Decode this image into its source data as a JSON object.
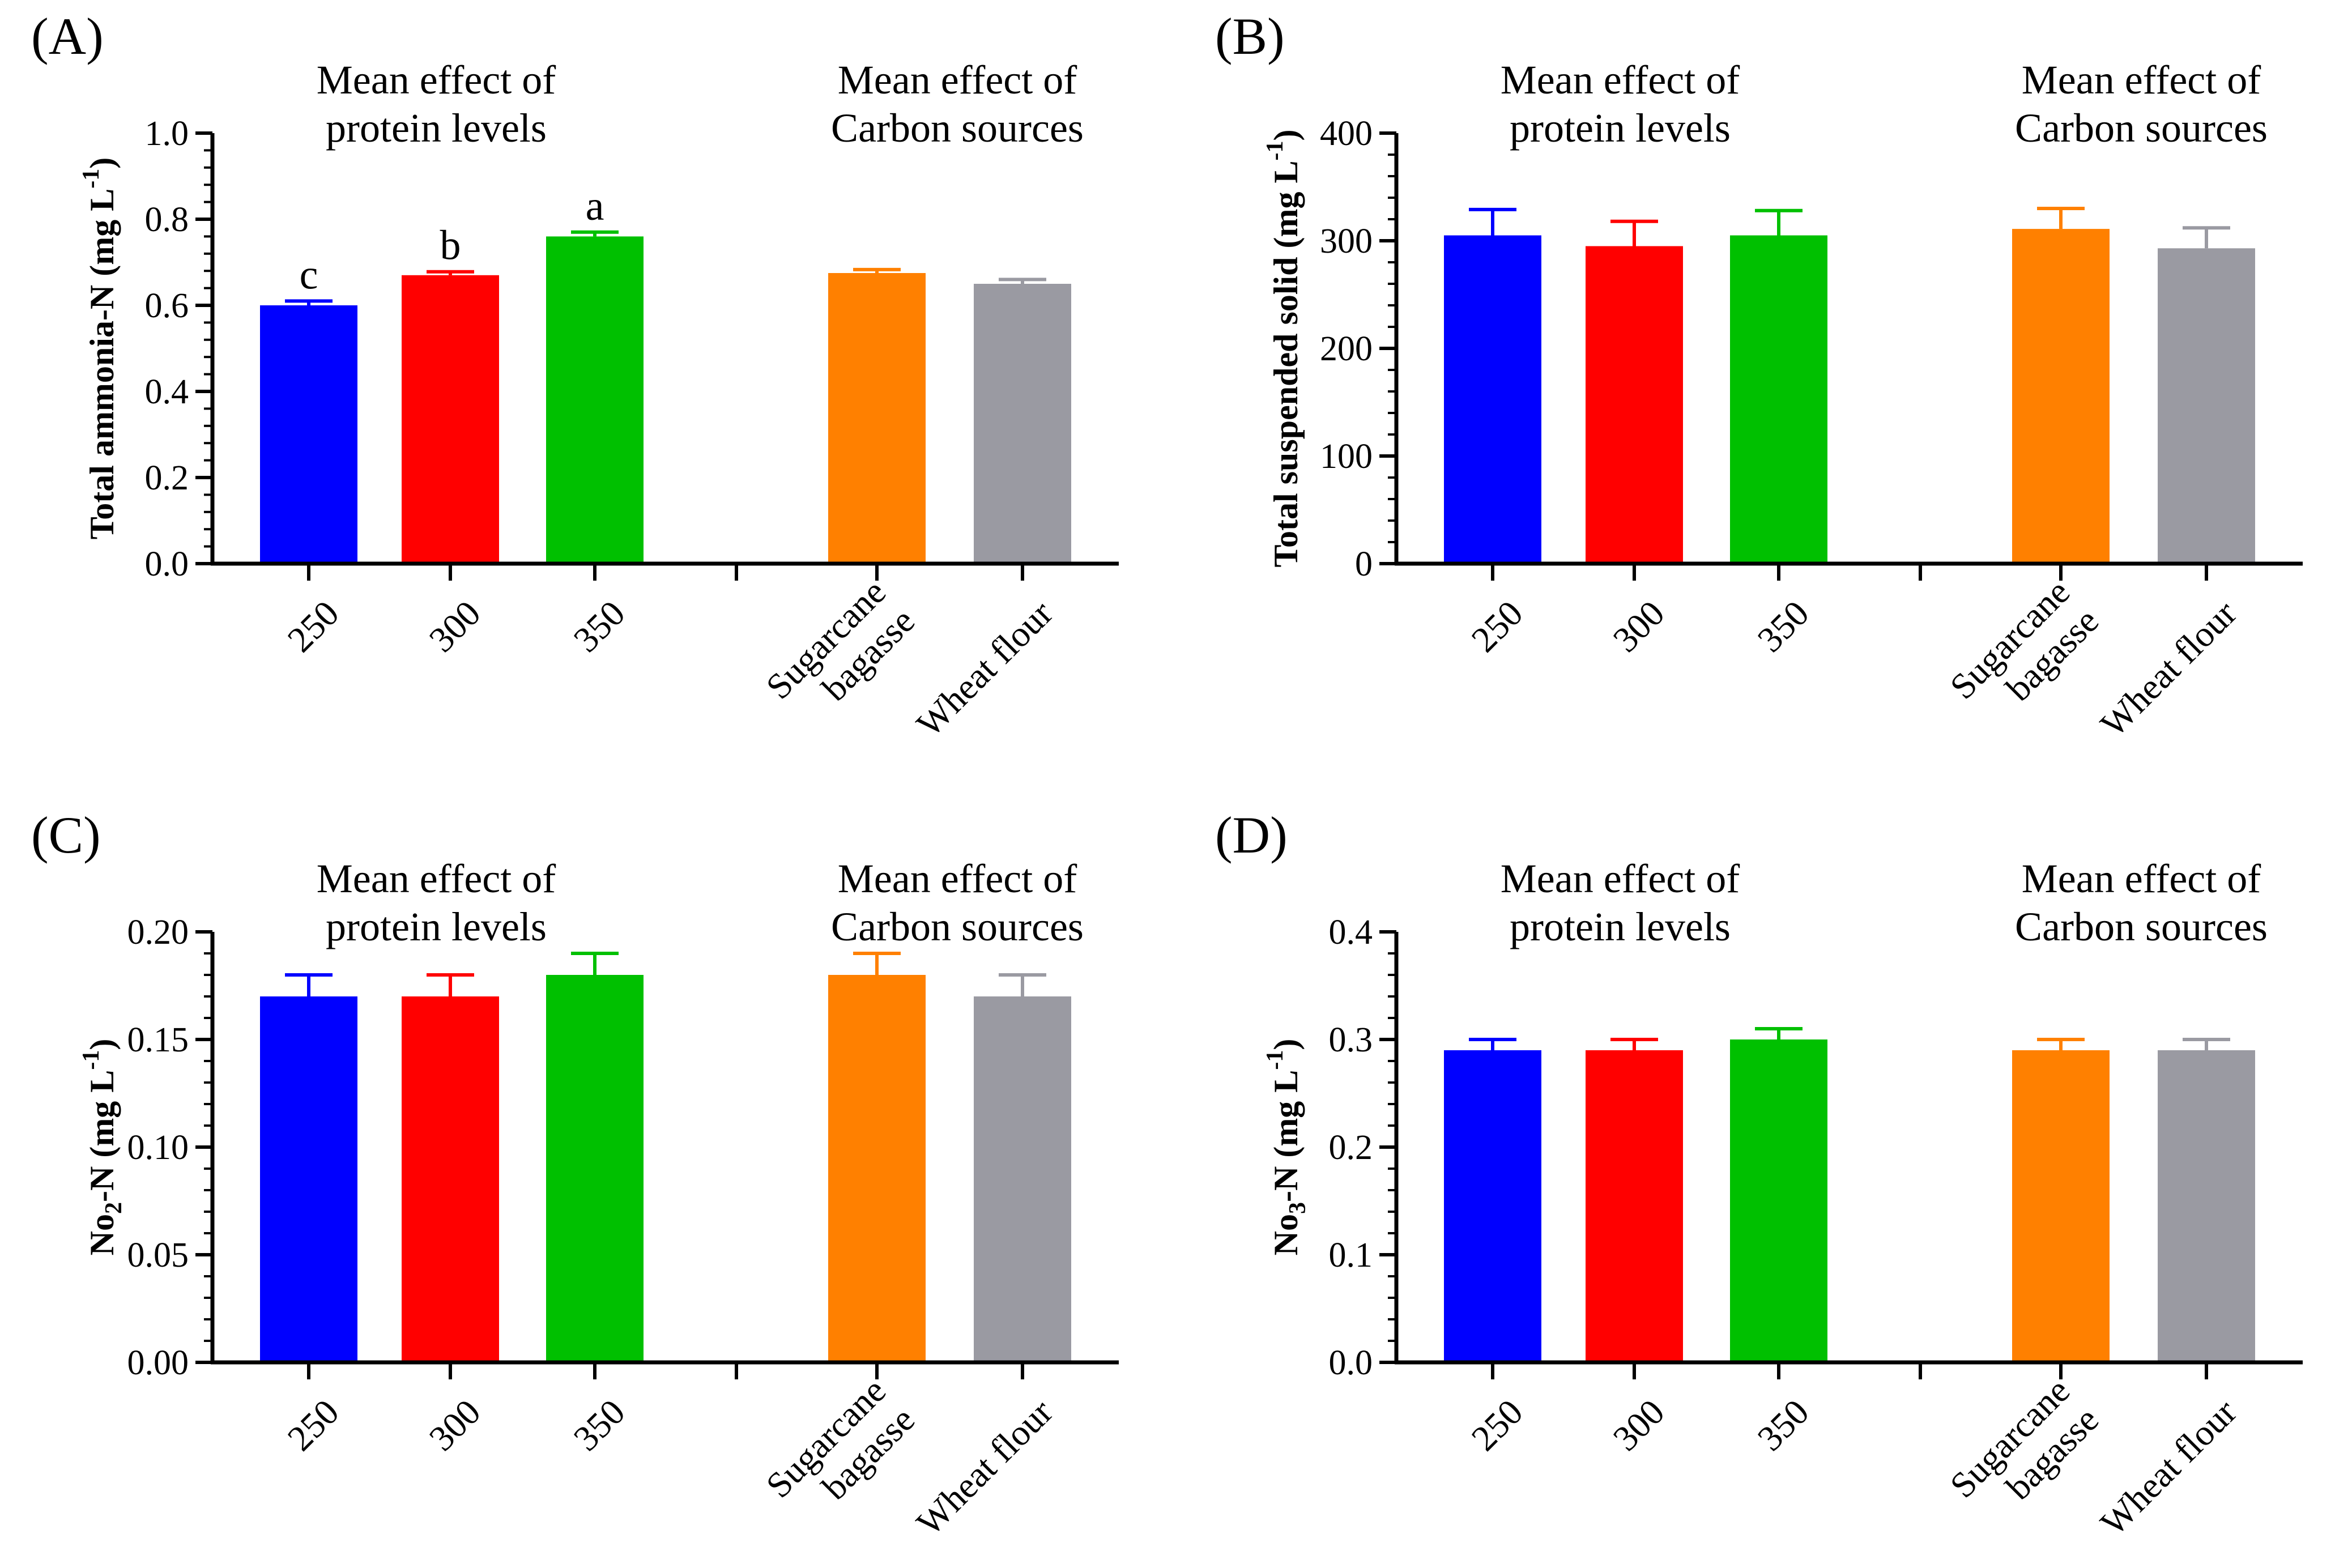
{
  "figure": {
    "colors": {
      "250": "#0000ff",
      "300": "#ff0000",
      "350": "#00c000",
      "sugarcane": "#ff8000",
      "wheat": "#9a9aa2"
    }
  },
  "chart_data": [
    {
      "id": "A",
      "type": "bar",
      "panel_label": "(A)",
      "group_titles": [
        [
          "Mean effect of",
          "protein levels"
        ],
        [
          "Mean effect of",
          "Carbon sources"
        ]
      ],
      "ylabel": "Total ammonia-N (mg L",
      "ylabel_sup": "-1",
      "ylabel_sub": "",
      "ylabel_after": ")",
      "ylim": [
        0,
        1.0
      ],
      "yticks": [
        "0.0",
        "0.2",
        "0.4",
        "0.6",
        "0.8",
        "1.0"
      ],
      "ytick_values": [
        0,
        0.2,
        0.4,
        0.6,
        0.8,
        1.0
      ],
      "minor_per_major": 4,
      "categories": [
        [
          "250"
        ],
        [
          "300"
        ],
        [
          "350"
        ],
        [
          "Sugarcane",
          "bagasse"
        ],
        [
          "Wheat flour"
        ]
      ],
      "values": [
        0.6,
        0.67,
        0.76,
        0.675,
        0.65
      ],
      "errors": [
        0.01,
        0.008,
        0.01,
        0.008,
        0.01
      ],
      "letters": [
        "c",
        "b",
        "a",
        "",
        ""
      ]
    },
    {
      "id": "B",
      "type": "bar",
      "panel_label": "(B)",
      "group_titles": [
        [
          "Mean effect of",
          "protein levels"
        ],
        [
          "Mean effect of",
          "Carbon sources"
        ]
      ],
      "ylabel": "Total suspended solid (mg L",
      "ylabel_sup": "-1",
      "ylabel_sub": "",
      "ylabel_after": ")",
      "ylim": [
        0,
        400
      ],
      "yticks": [
        "0",
        "100",
        "200",
        "300",
        "400"
      ],
      "ytick_values": [
        0,
        100,
        200,
        300,
        400
      ],
      "minor_per_major": 4,
      "categories": [
        [
          "250"
        ],
        [
          "300"
        ],
        [
          "350"
        ],
        [
          "Sugarcane",
          "bagasse"
        ],
        [
          "Wheat flour"
        ]
      ],
      "values": [
        305,
        295,
        305,
        311,
        293
      ],
      "errors": [
        24,
        23,
        23,
        19,
        19
      ],
      "letters": [
        "",
        "",
        "",
        "",
        ""
      ]
    },
    {
      "id": "C",
      "type": "bar",
      "panel_label": "(C)",
      "group_titles": [
        [
          "Mean effect of",
          "protein levels"
        ],
        [
          "Mean effect of",
          "Carbon sources"
        ]
      ],
      "ylabel": "No",
      "ylabel_sup": "",
      "ylabel_sub": "2",
      "ylabel_after": "-N (mg L",
      "ylabel_sup2": "-1",
      "ylabel_after2": ")",
      "ylim": [
        0,
        0.2
      ],
      "yticks": [
        "0.00",
        "0.05",
        "0.10",
        "0.15",
        "0.20"
      ],
      "ytick_values": [
        0,
        0.05,
        0.1,
        0.15,
        0.2
      ],
      "minor_per_major": 4,
      "categories": [
        [
          "250"
        ],
        [
          "300"
        ],
        [
          "350"
        ],
        [
          "Sugarcane",
          "bagasse"
        ],
        [
          "Wheat flour"
        ]
      ],
      "values": [
        0.17,
        0.17,
        0.18,
        0.18,
        0.17
      ],
      "errors": [
        0.01,
        0.01,
        0.01,
        0.01,
        0.01
      ],
      "letters": [
        "",
        "",
        "",
        "",
        ""
      ]
    },
    {
      "id": "D",
      "type": "bar",
      "panel_label": "(D)",
      "group_titles": [
        [
          "Mean effect of",
          "protein levels"
        ],
        [
          "Mean effect of",
          "Carbon sources"
        ]
      ],
      "ylabel": "No",
      "ylabel_sup": "",
      "ylabel_sub": "3",
      "ylabel_after": "-N (mg L",
      "ylabel_sup2": "-1",
      "ylabel_after2": ")",
      "ylim": [
        0,
        0.4
      ],
      "yticks": [
        "0.0",
        "0.1",
        "0.2",
        "0.3",
        "0.4"
      ],
      "ytick_values": [
        0,
        0.1,
        0.2,
        0.3,
        0.4
      ],
      "minor_per_major": 4,
      "categories": [
        [
          "250"
        ],
        [
          "300"
        ],
        [
          "350"
        ],
        [
          "Sugarcane",
          "bagasse"
        ],
        [
          "Wheat flour"
        ]
      ],
      "values": [
        0.29,
        0.29,
        0.3,
        0.29,
        0.29
      ],
      "errors": [
        0.01,
        0.01,
        0.01,
        0.01,
        0.01
      ],
      "letters": [
        "",
        "",
        "",
        "",
        ""
      ]
    }
  ]
}
